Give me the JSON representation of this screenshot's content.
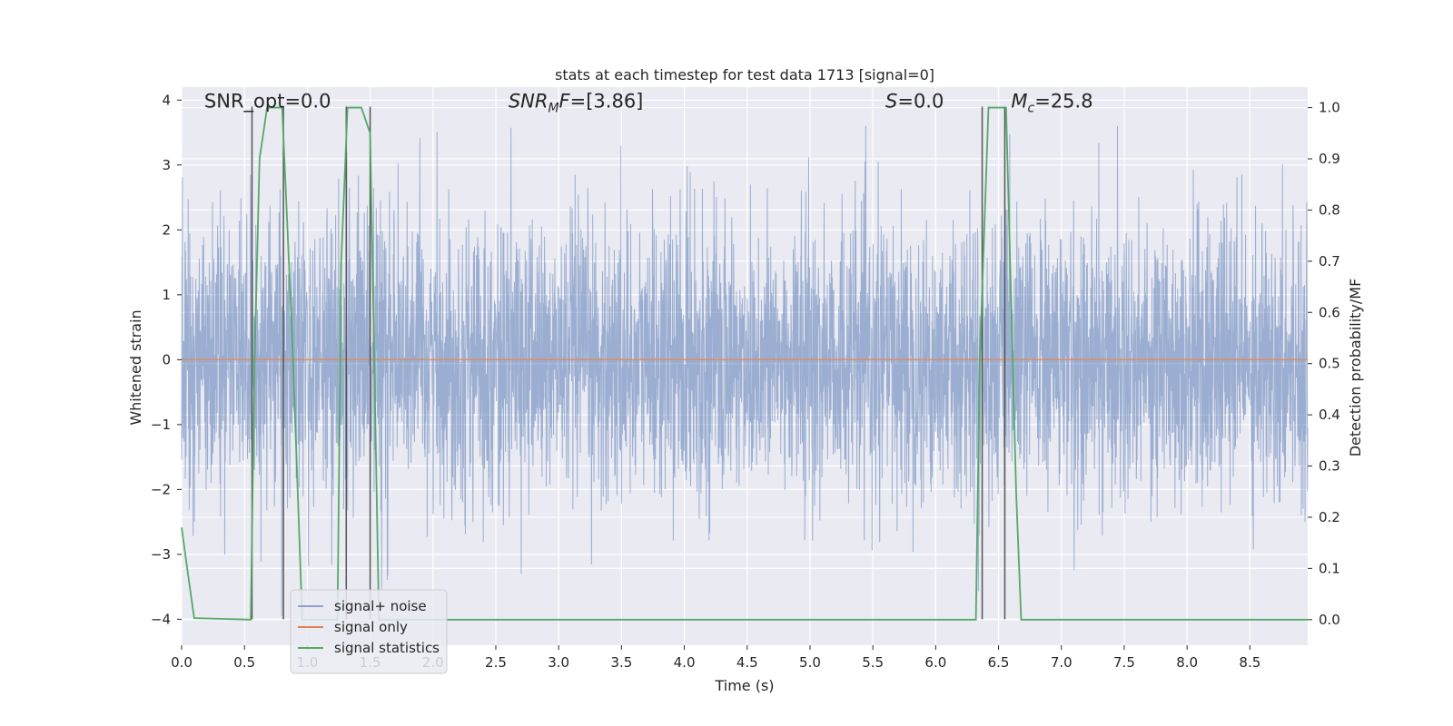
{
  "chart_data": {
    "type": "line",
    "title": "stats at each timestep for test data 1713 [signal=0]",
    "xlabel": "Time (s)",
    "ylabel_left": "Whitened strain",
    "ylabel_right": "Detection probability/MF",
    "xlim": [
      0.0,
      8.96
    ],
    "ylim_left": [
      -4.4,
      4.2
    ],
    "ylim_right": [
      -0.05,
      1.04
    ],
    "x_ticks": [
      "0.0",
      "0.5",
      "1.0",
      "1.5",
      "2.0",
      "2.5",
      "3.0",
      "3.5",
      "4.0",
      "4.5",
      "5.0",
      "5.5",
      "6.0",
      "6.5",
      "7.0",
      "7.5",
      "8.0",
      "8.5"
    ],
    "y_left_ticks": [
      "−4",
      "−3",
      "−2",
      "−1",
      "0",
      "1",
      "2",
      "3",
      "4"
    ],
    "y_right_ticks": [
      "0.0",
      "0.1",
      "0.2",
      "0.3",
      "0.4",
      "0.5",
      "0.6",
      "0.7",
      "0.8",
      "0.9",
      "1.0"
    ],
    "grid": true,
    "legend_position": "lower-left",
    "colors": {
      "noise": "#4c72b0",
      "signal_only": "#dd8452",
      "statistics": "#55a868",
      "markers": "#555555",
      "background": "#eaeaf2"
    },
    "annotations": [
      {
        "key": "snr_opt",
        "text": "SNR_opt=0.0",
        "x": 0.18
      },
      {
        "key": "snr_mf",
        "text": "SNR_MF=[3.86]",
        "x": 2.6
      },
      {
        "key": "s",
        "text": "S=0.0",
        "x": 5.6
      },
      {
        "key": "mc",
        "text": "M_c=25.8",
        "x": 6.6
      }
    ],
    "series": [
      {
        "name": "signal+ noise",
        "axis": "left",
        "description_values": {
          "typical_min": -2.0,
          "typical_max": 2.0,
          "peak_min": -4.0,
          "peak_max": 3.5
        }
      },
      {
        "name": "signal only",
        "axis": "left",
        "x": [
          0.0,
          8.96
        ],
        "y": [
          0.0,
          0.0
        ]
      },
      {
        "name": "signal statistics",
        "axis": "right",
        "x": [
          0.0,
          0.05,
          0.1,
          0.55,
          0.58,
          0.62,
          0.68,
          0.74,
          0.8,
          0.88,
          0.96,
          1.24,
          1.27,
          1.32,
          1.38,
          1.43,
          1.5,
          1.57,
          6.32,
          6.35,
          6.42,
          6.52,
          6.56,
          6.64,
          6.68,
          8.96
        ],
        "y": [
          0.18,
          0.09,
          0.003,
          0.0,
          0.5,
          0.9,
          1.0,
          1.0,
          1.0,
          0.55,
          0.0,
          0.0,
          0.7,
          1.0,
          1.0,
          1.0,
          0.95,
          0.0,
          0.0,
          0.5,
          1.0,
          1.0,
          1.0,
          0.25,
          0.0,
          0.0
        ]
      }
    ],
    "vertical_markers": [
      {
        "x": 0.56,
        "y_top_left": 3.9
      },
      {
        "x": 0.81,
        "y_top_left": 3.9
      },
      {
        "x": 1.31,
        "y_top_left": 3.9
      },
      {
        "x": 1.5,
        "y_top_left": 3.9
      },
      {
        "x": 6.37,
        "y_top_left": 3.9
      },
      {
        "x": 6.55,
        "y_top_left": 3.9
      }
    ],
    "legend": [
      {
        "key": "noise",
        "label": "signal+ noise"
      },
      {
        "key": "signal_only",
        "label": "signal only"
      },
      {
        "key": "statistics",
        "label": "signal statistics"
      }
    ]
  }
}
